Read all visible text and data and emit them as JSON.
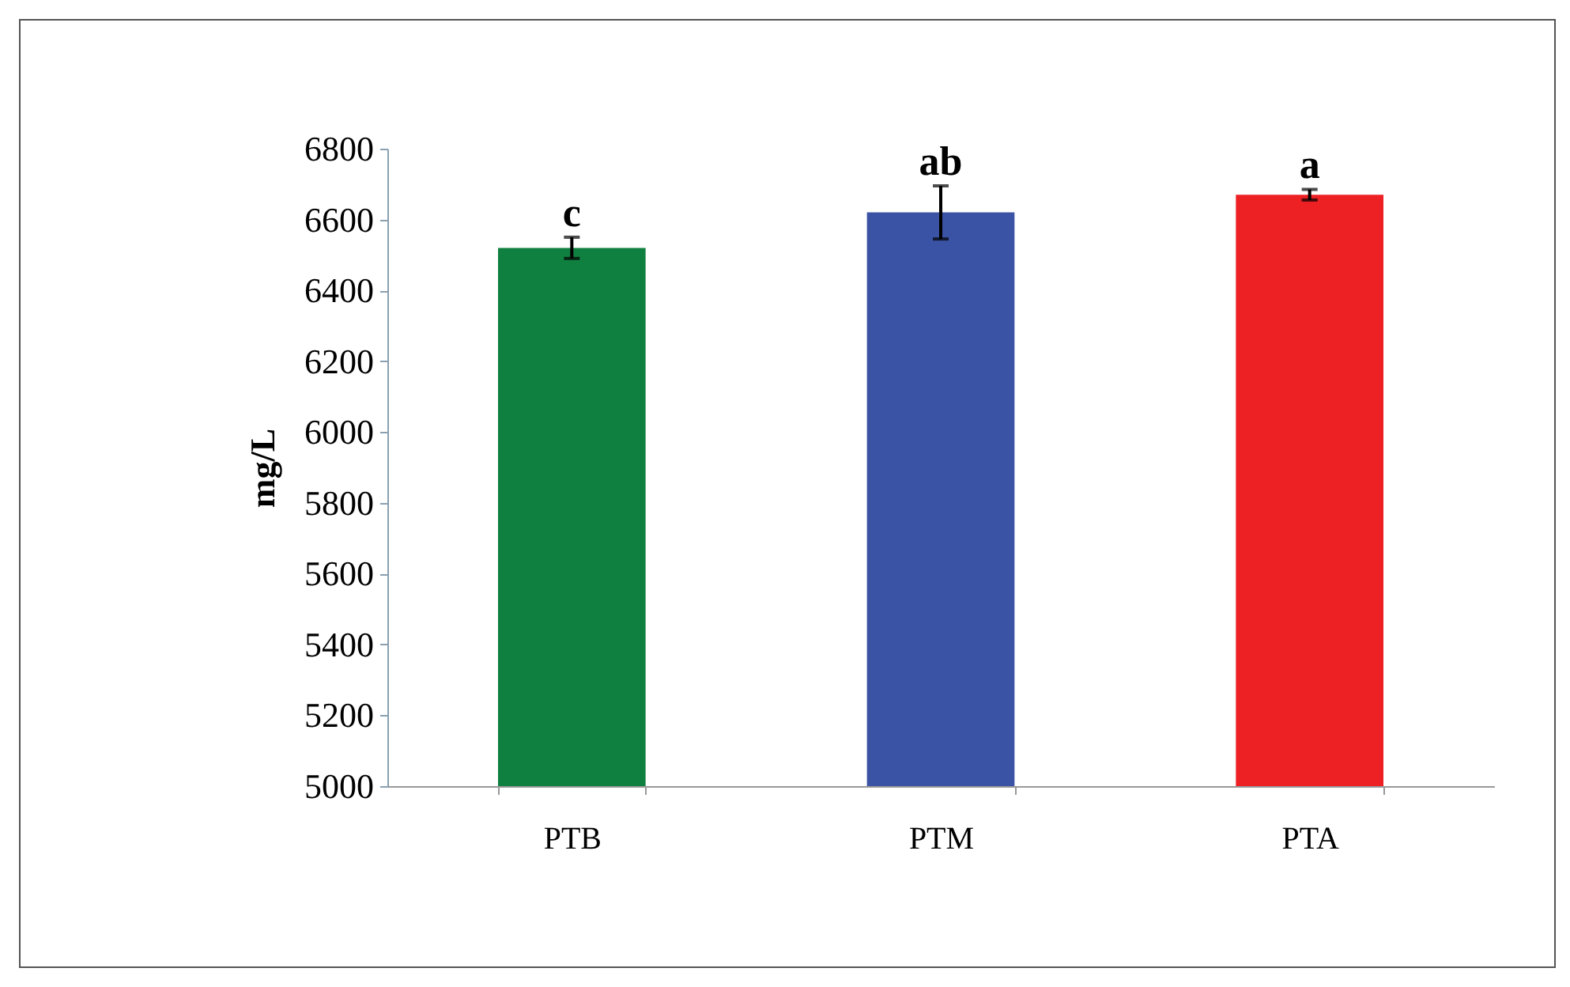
{
  "chart_data": {
    "type": "bar",
    "ylabel": "mg/L",
    "categories": [
      "PTB",
      "PTM",
      "PTA"
    ],
    "values": [
      6520,
      6620,
      6670
    ],
    "colors": [
      "#108040",
      "#3a53a4",
      "#ed2024"
    ],
    "errors": [
      30,
      75,
      15
    ],
    "ylim": [
      5000,
      6800
    ],
    "yticks": [
      5000,
      5200,
      5400,
      5600,
      5800,
      6000,
      6200,
      6400,
      6600,
      6800
    ],
    "annotations": [
      {
        "text": "c",
        "x": "PTB",
        "y": 6550
      },
      {
        "text": "ab",
        "x": "PTM",
        "y": 6695
      },
      {
        "text": "a",
        "x": "PTA",
        "y": 6685
      }
    ],
    "grid": false
  }
}
